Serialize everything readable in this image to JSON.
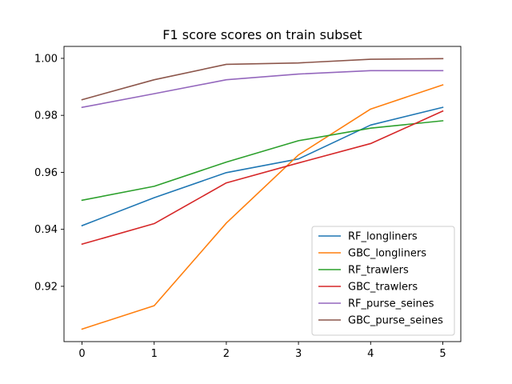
{
  "chart_data": {
    "type": "line",
    "title": "F1 score scores on train subset",
    "xlabel": "",
    "ylabel": "",
    "x": [
      0,
      1,
      2,
      3,
      4,
      5
    ],
    "xlim": [
      -0.25,
      5.25
    ],
    "ylim": [
      0.9006,
      1.0042
    ],
    "xticks": [
      "0",
      "1",
      "2",
      "3",
      "4",
      "5"
    ],
    "yticks": [
      "0.92",
      "0.94",
      "0.96",
      "0.98",
      "1.00"
    ],
    "ytick_values": [
      0.92,
      0.94,
      0.96,
      0.98,
      1.0
    ],
    "grid": false,
    "legend_position": "lower right",
    "series": [
      {
        "name": "RF_longliners",
        "color": "#1f77b4",
        "values": [
          0.9413,
          0.9511,
          0.9599,
          0.9647,
          0.9766,
          0.9828
        ]
      },
      {
        "name": "GBC_longliners",
        "color": "#ff7f0e",
        "values": [
          0.905,
          0.9132,
          0.9422,
          0.9661,
          0.9822,
          0.9907
        ]
      },
      {
        "name": "RF_trawlers",
        "color": "#2ca02c",
        "values": [
          0.9502,
          0.9551,
          0.9636,
          0.9711,
          0.9755,
          0.9781
        ]
      },
      {
        "name": "GBC_trawlers",
        "color": "#d62728",
        "values": [
          0.9348,
          0.942,
          0.9563,
          0.9633,
          0.9701,
          0.9815
        ]
      },
      {
        "name": "RF_purse_seines",
        "color": "#9467bd",
        "values": [
          0.9828,
          0.9876,
          0.9925,
          0.9945,
          0.9957,
          0.9957
        ]
      },
      {
        "name": "GBC_purse_seines",
        "color": "#8c564b",
        "values": [
          0.9855,
          0.9925,
          0.9979,
          0.9984,
          0.9997,
          0.9999
        ]
      }
    ]
  }
}
